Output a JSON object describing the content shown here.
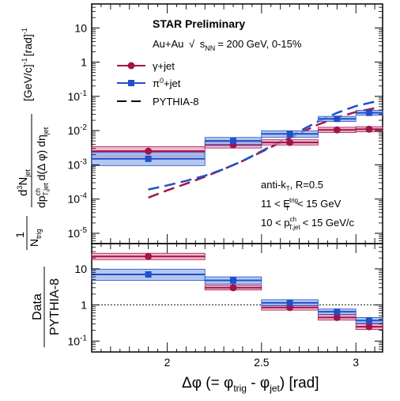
{
  "chart_data": {
    "type": "scatter",
    "title": "STAR Preliminary",
    "subtitle": {
      "system": "Au+Au",
      "sqrt": "√",
      "s": "s",
      "nn": "NN",
      "energy": "= 200 GeV, 0-15%"
    },
    "xlabel": {
      "main": "Δφ (= φ",
      "trig": "trig",
      "dash": " - φ",
      "jet": "jet",
      "unit": ") [rad]"
    },
    "ylabel_top": {
      "one": "1",
      "n": "N",
      "trig": "trig",
      "d3": "d",
      "three": "3",
      "N": "N",
      "jet": "jet",
      "dp": "dp",
      "ch": "ch",
      "tjet": "T,jet",
      "dphi": "d(Δ φ) dη",
      "jet2": "jet",
      "unit": "[GeV/c]",
      "exp": "-1",
      "rad": "[rad]",
      "exp2": "-1"
    },
    "ylabel_bottom": {
      "num": "Data",
      "den": "PYTHIA-8"
    },
    "x_ticks": [
      "2",
      "2.5",
      "3"
    ],
    "top_y_ticks": [
      "10",
      "10",
      "10",
      "10",
      "1",
      "10",
      "10"
    ],
    "top_y_tick_exps": [
      "-5",
      "-4",
      "-3",
      "-2",
      "",
      "-1",
      ""
    ],
    "bottom_y_ticks": [
      "10",
      "1",
      "10"
    ],
    "bottom_y_tick_exps": [
      "-1",
      "",
      ""
    ],
    "xlim": [
      1.6,
      3.1416
    ],
    "top_ylim": [
      5e-06,
      50
    ],
    "bottom_ylim": [
      0.05,
      50
    ],
    "legend": {
      "placement": "top-left",
      "items": [
        {
          "label": "γ+jet"
        },
        {
          "label": "π",
          "sup": "0",
          "rest": "+jet"
        },
        {
          "label": "PYTHIA-8"
        }
      ]
    },
    "annotations": {
      "algo": "anti-k",
      "algo_sub": "T",
      "algo_rest": ", R=0.5",
      "et_lo": "11 < E",
      "et_sup": "trig",
      "et_sub": "T",
      "et_hi": "< 15 GeV",
      "pt_lo": "10 < p",
      "pt_sup": "ch",
      "pt_sub": "T,jet",
      "pt_hi": "< 15 GeV/c"
    },
    "colors": {
      "gamma": "#a3134a",
      "gamma_band": "#e8a3bd",
      "pi0": "#1f4fc9",
      "pi0_band": "#9bb5ea"
    },
    "series": [
      {
        "name": "γ+jet",
        "marker": "circle",
        "bins": [
          [
            1.6,
            2.2
          ],
          [
            2.2,
            2.5
          ],
          [
            2.5,
            2.8
          ],
          [
            2.8,
            3.0
          ],
          [
            3.0,
            3.1416
          ]
        ],
        "x": [
          1.9,
          2.35,
          2.65,
          2.9,
          3.07
        ],
        "y": [
          0.0025,
          0.0038,
          0.0045,
          0.0105,
          0.011
        ],
        "sys_lo": [
          0.0018,
          0.0031,
          0.0038,
          0.0088,
          0.0092
        ],
        "sys_hi": [
          0.0034,
          0.0047,
          0.0054,
          0.0125,
          0.013
        ],
        "ratio": [
          22,
          3.0,
          0.85,
          0.45,
          0.25
        ],
        "ratio_lo": [
          18,
          2.6,
          0.72,
          0.38,
          0.21
        ],
        "ratio_hi": [
          27,
          3.5,
          0.98,
          0.54,
          0.3
        ]
      },
      {
        "name": "π0+jet",
        "marker": "square",
        "bins": [
          [
            1.6,
            2.2
          ],
          [
            2.2,
            2.5
          ],
          [
            2.5,
            2.8
          ],
          [
            2.8,
            3.0
          ],
          [
            3.0,
            3.1416
          ]
        ],
        "x": [
          1.9,
          2.35,
          2.65,
          2.9,
          3.07
        ],
        "y": [
          0.0015,
          0.005,
          0.008,
          0.022,
          0.033
        ],
        "sys_lo": [
          0.00095,
          0.0039,
          0.0063,
          0.0185,
          0.028
        ],
        "sys_hi": [
          0.0023,
          0.0063,
          0.0099,
          0.026,
          0.039
        ],
        "ratio": [
          7.0,
          4.8,
          1.15,
          0.65,
          0.37
        ],
        "ratio_lo": [
          4.8,
          3.8,
          0.95,
          0.55,
          0.31
        ],
        "ratio_hi": [
          9.8,
          6.0,
          1.4,
          0.77,
          0.45
        ]
      }
    ],
    "pythia": [
      {
        "name": "PYTHIA-8 γ+jet",
        "color": "gamma",
        "x": [
          1.9,
          2.0,
          2.1,
          2.2,
          2.3,
          2.4,
          2.5,
          2.6,
          2.7,
          2.8,
          2.9,
          3.0,
          3.1
        ],
        "y": [
          0.00011,
          0.00018,
          0.00028,
          0.00045,
          0.00075,
          0.0013,
          0.0024,
          0.0045,
          0.0083,
          0.015,
          0.024,
          0.035,
          0.045
        ]
      },
      {
        "name": "PYTHIA-8 π0+jet",
        "color": "pi0",
        "x": [
          1.9,
          2.0,
          2.1,
          2.2,
          2.3,
          2.4,
          2.5,
          2.6,
          2.7,
          2.8,
          2.9,
          3.0,
          3.1
        ],
        "y": [
          0.00019,
          0.00025,
          0.00034,
          0.00048,
          0.00075,
          0.0013,
          0.0025,
          0.0048,
          0.0095,
          0.0185,
          0.033,
          0.052,
          0.07
        ]
      }
    ],
    "reference_line": 1
  }
}
